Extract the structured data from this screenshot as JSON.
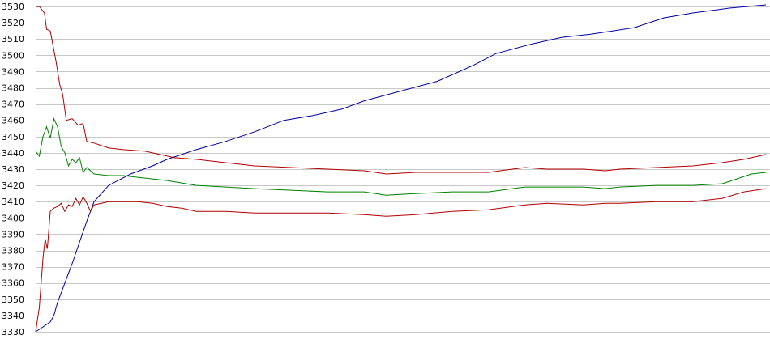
{
  "chart_data": {
    "type": "line",
    "title": "",
    "xlabel": "",
    "ylabel": "",
    "ylim": [
      3330,
      3530
    ],
    "xlim": [
      0,
      1
    ],
    "grid": true,
    "legend": "none",
    "y_ticks": [
      3330,
      3340,
      3350,
      3360,
      3370,
      3380,
      3390,
      3400,
      3410,
      3420,
      3430,
      3440,
      3450,
      3460,
      3470,
      3480,
      3490,
      3500,
      3510,
      3520,
      3530
    ],
    "grid_color": "#c8c8c8",
    "series": [
      {
        "color": "#0000a0",
        "points": [
          [
            0,
            3330
          ],
          [
            0.01,
            3333
          ],
          [
            0.02,
            3336
          ],
          [
            0.025,
            3340
          ],
          [
            0.03,
            3348
          ],
          [
            0.04,
            3360
          ],
          [
            0.05,
            3372
          ],
          [
            0.06,
            3385
          ],
          [
            0.07,
            3398
          ],
          [
            0.08,
            3410
          ],
          [
            0.1,
            3420
          ],
          [
            0.13,
            3427
          ],
          [
            0.16,
            3432
          ],
          [
            0.18,
            3436
          ],
          [
            0.22,
            3442
          ],
          [
            0.26,
            3447
          ],
          [
            0.3,
            3453
          ],
          [
            0.34,
            3460
          ],
          [
            0.38,
            3463
          ],
          [
            0.42,
            3467
          ],
          [
            0.45,
            3472
          ],
          [
            0.5,
            3478
          ],
          [
            0.55,
            3484
          ],
          [
            0.6,
            3494
          ],
          [
            0.63,
            3501
          ],
          [
            0.68,
            3507
          ],
          [
            0.72,
            3511
          ],
          [
            0.76,
            3513
          ],
          [
            0.82,
            3517
          ],
          [
            0.86,
            3523
          ],
          [
            0.9,
            3526
          ],
          [
            0.95,
            3529
          ],
          [
            1.0,
            3531
          ]
        ]
      },
      {
        "color": "#b00000",
        "points": [
          [
            0,
            3530
          ],
          [
            0.005,
            3530
          ],
          [
            0.012,
            3526
          ],
          [
            0.015,
            3516
          ],
          [
            0.02,
            3515
          ],
          [
            0.028,
            3496
          ],
          [
            0.033,
            3482
          ],
          [
            0.037,
            3476
          ],
          [
            0.042,
            3460
          ],
          [
            0.05,
            3461
          ],
          [
            0.058,
            3457
          ],
          [
            0.065,
            3458
          ],
          [
            0.07,
            3447
          ],
          [
            0.08,
            3446
          ],
          [
            0.1,
            3443
          ],
          [
            0.12,
            3442
          ],
          [
            0.15,
            3441
          ],
          [
            0.17,
            3439
          ],
          [
            0.19,
            3437
          ],
          [
            0.22,
            3436
          ],
          [
            0.26,
            3434
          ],
          [
            0.3,
            3432
          ],
          [
            0.35,
            3431
          ],
          [
            0.4,
            3430
          ],
          [
            0.45,
            3429
          ],
          [
            0.48,
            3427
          ],
          [
            0.52,
            3428
          ],
          [
            0.57,
            3428
          ],
          [
            0.62,
            3428
          ],
          [
            0.67,
            3431
          ],
          [
            0.7,
            3430
          ],
          [
            0.75,
            3430
          ],
          [
            0.78,
            3429
          ],
          [
            0.8,
            3430
          ],
          [
            0.85,
            3431
          ],
          [
            0.9,
            3432
          ],
          [
            0.94,
            3434
          ],
          [
            0.97,
            3436
          ],
          [
            1.0,
            3439
          ]
        ]
      },
      {
        "color": "#008000",
        "points": [
          [
            0,
            3441
          ],
          [
            0.005,
            3438
          ],
          [
            0.01,
            3450
          ],
          [
            0.015,
            3456
          ],
          [
            0.02,
            3449
          ],
          [
            0.025,
            3461
          ],
          [
            0.03,
            3456
          ],
          [
            0.035,
            3444
          ],
          [
            0.04,
            3440
          ],
          [
            0.045,
            3432
          ],
          [
            0.05,
            3436
          ],
          [
            0.055,
            3434
          ],
          [
            0.06,
            3437
          ],
          [
            0.065,
            3428
          ],
          [
            0.07,
            3431
          ],
          [
            0.08,
            3427
          ],
          [
            0.1,
            3426
          ],
          [
            0.12,
            3426
          ],
          [
            0.14,
            3425
          ],
          [
            0.16,
            3424
          ],
          [
            0.18,
            3423
          ],
          [
            0.22,
            3420
          ],
          [
            0.26,
            3419
          ],
          [
            0.3,
            3418
          ],
          [
            0.35,
            3417
          ],
          [
            0.4,
            3416
          ],
          [
            0.45,
            3416
          ],
          [
            0.48,
            3414
          ],
          [
            0.52,
            3415
          ],
          [
            0.57,
            3416
          ],
          [
            0.62,
            3416
          ],
          [
            0.67,
            3419
          ],
          [
            0.7,
            3419
          ],
          [
            0.75,
            3419
          ],
          [
            0.78,
            3418
          ],
          [
            0.8,
            3419
          ],
          [
            0.85,
            3420
          ],
          [
            0.9,
            3420
          ],
          [
            0.94,
            3421
          ],
          [
            0.96,
            3424
          ],
          [
            0.98,
            3427
          ],
          [
            1.0,
            3428
          ]
        ]
      },
      {
        "color": "#b00000",
        "points": [
          [
            0,
            3330
          ],
          [
            0.005,
            3345
          ],
          [
            0.01,
            3375
          ],
          [
            0.013,
            3387
          ],
          [
            0.016,
            3381
          ],
          [
            0.02,
            3404
          ],
          [
            0.025,
            3406
          ],
          [
            0.03,
            3407
          ],
          [
            0.035,
            3409
          ],
          [
            0.04,
            3404
          ],
          [
            0.045,
            3408
          ],
          [
            0.05,
            3407
          ],
          [
            0.055,
            3412
          ],
          [
            0.06,
            3408
          ],
          [
            0.065,
            3413
          ],
          [
            0.07,
            3409
          ],
          [
            0.075,
            3404
          ],
          [
            0.08,
            3408
          ],
          [
            0.09,
            3409
          ],
          [
            0.1,
            3410
          ],
          [
            0.12,
            3410
          ],
          [
            0.14,
            3410
          ],
          [
            0.16,
            3409
          ],
          [
            0.18,
            3407
          ],
          [
            0.2,
            3406
          ],
          [
            0.22,
            3404
          ],
          [
            0.26,
            3404
          ],
          [
            0.3,
            3403
          ],
          [
            0.35,
            3403
          ],
          [
            0.4,
            3403
          ],
          [
            0.45,
            3402
          ],
          [
            0.48,
            3401
          ],
          [
            0.52,
            3402
          ],
          [
            0.57,
            3404
          ],
          [
            0.62,
            3405
          ],
          [
            0.67,
            3408
          ],
          [
            0.7,
            3409
          ],
          [
            0.75,
            3408
          ],
          [
            0.78,
            3409
          ],
          [
            0.8,
            3409
          ],
          [
            0.85,
            3410
          ],
          [
            0.9,
            3410
          ],
          [
            0.94,
            3412
          ],
          [
            0.97,
            3416
          ],
          [
            1.0,
            3418
          ]
        ]
      }
    ]
  }
}
